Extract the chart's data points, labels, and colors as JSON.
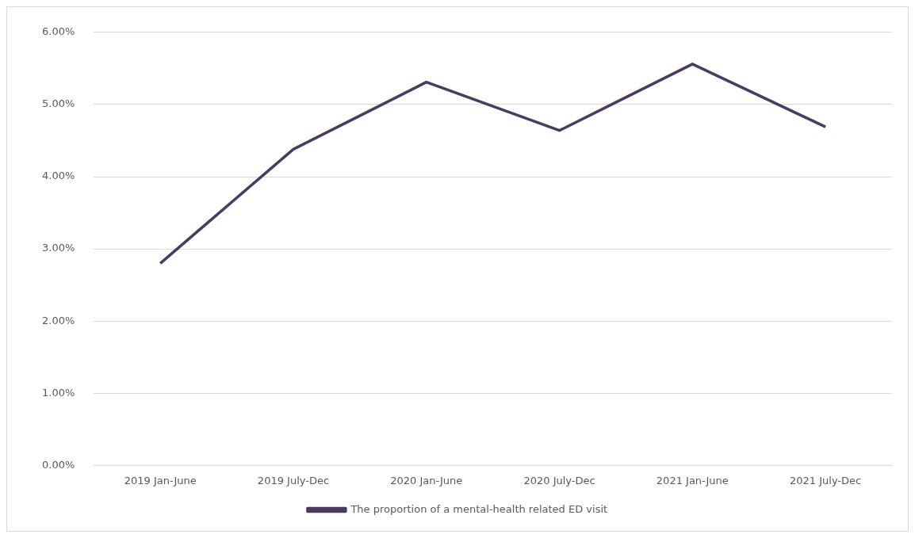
{
  "chart_data": {
    "type": "line",
    "categories": [
      "2019 Jan-June",
      "2019 July-Dec",
      "2020 Jan-June",
      "2020 July-Dec",
      "2021 Jan-June",
      "2021 July-Dec"
    ],
    "series": [
      {
        "name": "The proportion of a mental-health related ED visit",
        "color": "#4b3b63",
        "values": [
          2.8,
          4.38,
          5.31,
          4.64,
          5.56,
          4.69
        ]
      }
    ],
    "ylim": [
      0,
      6
    ],
    "yticks": [
      {
        "value": 0,
        "label": "0.00%"
      },
      {
        "value": 1,
        "label": "1.00%"
      },
      {
        "value": 2,
        "label": "2.00%"
      },
      {
        "value": 3,
        "label": "3.00%"
      },
      {
        "value": 4,
        "label": "4.00%"
      },
      {
        "value": 5,
        "label": "5.00%"
      },
      {
        "value": 6,
        "label": "6.00%"
      }
    ],
    "grid": "y",
    "legend": "bottom",
    "marker": "none",
    "line_style": "solid"
  }
}
